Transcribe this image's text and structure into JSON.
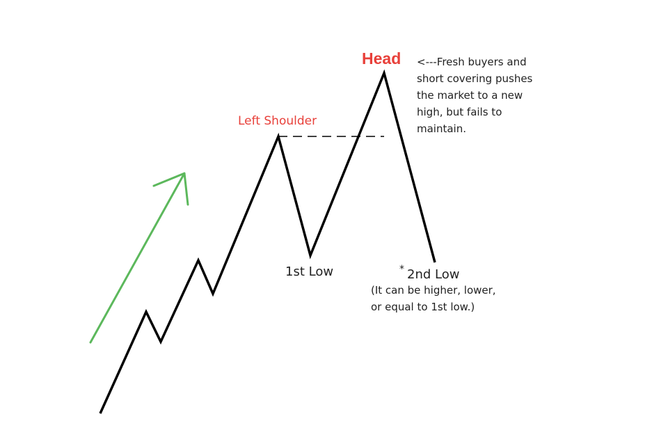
{
  "labels": {
    "head": "Head",
    "left_shoulder": "Left Shoulder",
    "first_low": "1st Low",
    "second_low_marker": "*",
    "second_low": "2nd Low"
  },
  "head_note": {
    "lines": [
      "<---Fresh buyers and",
      "short covering pushes",
      "the market to a new",
      "high, but fails to",
      "maintain."
    ]
  },
  "second_low_note": {
    "lines": [
      "(It can be higher, lower,",
      "or equal to 1st low.)"
    ]
  },
  "colors": {
    "price_line": "#000000",
    "trend_arrow": "#5cb85c",
    "label_accent": "#e8403a",
    "text": "#222222"
  }
}
